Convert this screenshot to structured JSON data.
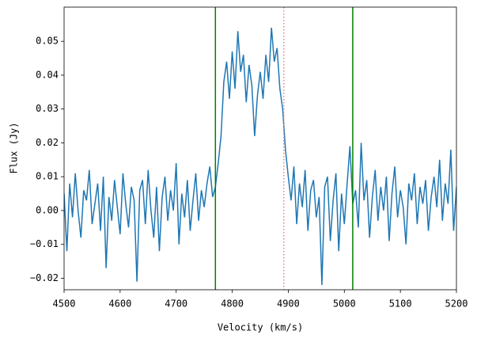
{
  "chart_data": {
    "type": "line",
    "xlabel": "Velocity (km/s)",
    "ylabel": "Flux (Jy)",
    "x": [
      4500,
      4505,
      4510,
      4515,
      4520,
      4525,
      4530,
      4535,
      4540,
      4545,
      4550,
      4555,
      4560,
      4565,
      4570,
      4575,
      4580,
      4585,
      4590,
      4595,
      4600,
      4605,
      4610,
      4615,
      4620,
      4625,
      4630,
      4635,
      4640,
      4645,
      4650,
      4655,
      4660,
      4665,
      4670,
      4675,
      4680,
      4685,
      4690,
      4695,
      4700,
      4705,
      4710,
      4715,
      4720,
      4725,
      4730,
      4735,
      4740,
      4745,
      4750,
      4755,
      4760,
      4765,
      4770,
      4775,
      4780,
      4785,
      4790,
      4795,
      4800,
      4805,
      4810,
      4815,
      4820,
      4825,
      4830,
      4835,
      4840,
      4845,
      4850,
      4855,
      4860,
      4865,
      4870,
      4875,
      4880,
      4885,
      4890,
      4895,
      4900,
      4905,
      4910,
      4915,
      4920,
      4925,
      4930,
      4935,
      4940,
      4945,
      4950,
      4955,
      4960,
      4965,
      4970,
      4975,
      4980,
      4985,
      4990,
      4995,
      5000,
      5005,
      5010,
      5015,
      5020,
      5025,
      5030,
      5035,
      5040,
      5045,
      5050,
      5055,
      5060,
      5065,
      5070,
      5075,
      5080,
      5085,
      5090,
      5095,
      5100,
      5105,
      5110,
      5115,
      5120,
      5125,
      5130,
      5135,
      5140,
      5145,
      5150,
      5155,
      5160,
      5165,
      5170,
      5175,
      5180,
      5185,
      5190,
      5195,
      5200
    ],
    "series": [
      {
        "color": "#1f77b4",
        "values": [
          0.005,
          -0.012,
          0.008,
          -0.002,
          0.011,
          0.0,
          -0.008,
          0.006,
          0.003,
          0.012,
          -0.004,
          0.002,
          0.008,
          -0.006,
          0.01,
          -0.017,
          0.004,
          -0.003,
          0.009,
          0.001,
          -0.007,
          0.011,
          0.002,
          -0.005,
          0.007,
          0.003,
          -0.021,
          0.006,
          0.009,
          -0.004,
          0.012,
          0.0,
          -0.008,
          0.007,
          -0.012,
          0.004,
          0.01,
          -0.003,
          0.006,
          0.0,
          0.014,
          -0.01,
          0.005,
          -0.002,
          0.009,
          -0.006,
          0.003,
          0.011,
          -0.003,
          0.006,
          0.001,
          0.008,
          0.013,
          0.004,
          0.007,
          0.014,
          0.022,
          0.038,
          0.044,
          0.033,
          0.047,
          0.036,
          0.053,
          0.041,
          0.046,
          0.032,
          0.043,
          0.037,
          0.022,
          0.034,
          0.041,
          0.033,
          0.046,
          0.038,
          0.054,
          0.044,
          0.048,
          0.036,
          0.03,
          0.018,
          0.01,
          0.003,
          0.013,
          -0.004,
          0.008,
          0.001,
          0.012,
          -0.006,
          0.006,
          0.009,
          -0.002,
          0.004,
          -0.022,
          0.007,
          0.01,
          -0.009,
          0.003,
          0.011,
          -0.012,
          0.005,
          -0.004,
          0.008,
          0.019,
          0.002,
          0.006,
          -0.005,
          0.02,
          0.003,
          0.009,
          -0.008,
          0.004,
          0.012,
          -0.003,
          0.007,
          0.0,
          0.01,
          -0.009,
          0.005,
          0.013,
          -0.002,
          0.006,
          0.001,
          -0.01,
          0.008,
          0.003,
          0.011,
          -0.004,
          0.007,
          0.002,
          0.009,
          -0.006,
          0.004,
          0.01,
          0.001,
          0.015,
          -0.003,
          0.008,
          0.002,
          0.018,
          -0.006,
          0.007
        ]
      }
    ],
    "vlines": [
      {
        "x": 4770,
        "color": "green",
        "style": "solid"
      },
      {
        "x": 5015,
        "color": "green",
        "style": "solid"
      },
      {
        "x": 4892,
        "color": "#f08080",
        "style": "dotted"
      }
    ],
    "xlim": [
      4500,
      5200
    ],
    "xticks": [
      4500,
      4600,
      4700,
      4800,
      4900,
      5000,
      5100,
      5200
    ],
    "ylim": [
      -0.0234,
      0.0601
    ],
    "yticks": [
      {
        "value": -0.02,
        "label": "−0.02"
      },
      {
        "value": -0.01,
        "label": "−0.01"
      },
      {
        "value": 0,
        "label": "0.00"
      },
      0.01,
      0.02,
      0.03,
      0.04,
      0.05
    ]
  }
}
